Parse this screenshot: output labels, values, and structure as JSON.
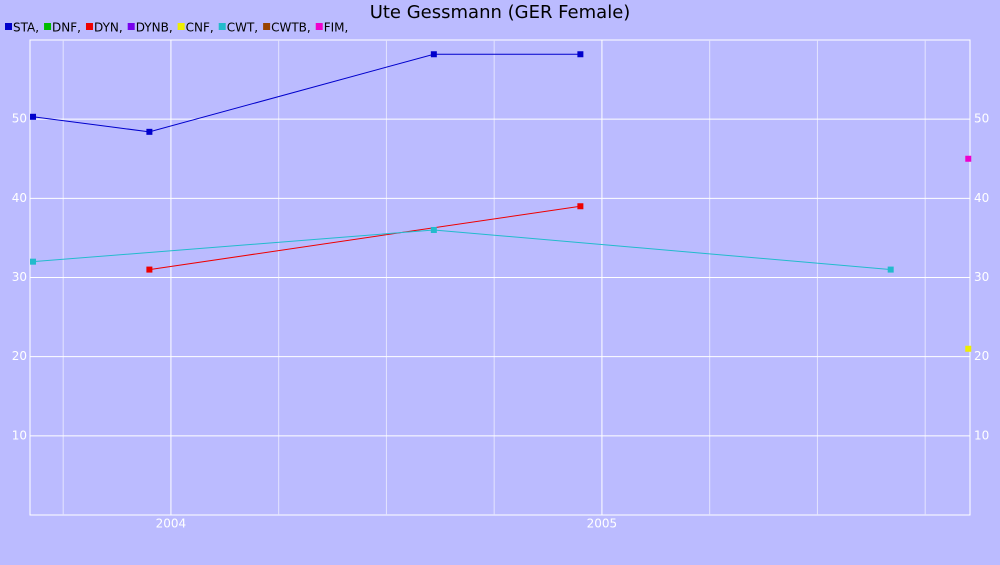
{
  "chart_data": {
    "type": "line",
    "title": "Ute Gessmann (GER Female)",
    "xlim": [
      2003.673,
      2005.854
    ],
    "xticks": [
      2004,
      2005
    ],
    "xminor_ticks": [
      2003.75,
      2004.25,
      2004.5,
      2004.75,
      2005.25,
      2005.5,
      2005.75
    ],
    "ylim": [
      0,
      60
    ],
    "yticks": [
      10,
      20,
      30,
      40,
      50
    ],
    "grid": true,
    "series": [
      {
        "name": "STA,",
        "color": "#0000cc",
        "x": [
          2003.68,
          2003.95,
          2004.61,
          2004.95
        ],
        "values": [
          50.3,
          48.4,
          58.2,
          58.2
        ]
      },
      {
        "name": "DNF,",
        "color": "#00bb00",
        "x": [],
        "values": []
      },
      {
        "name": "DYN,",
        "color": "#ee0000",
        "x": [
          2003.95,
          2004.95
        ],
        "values": [
          31,
          39
        ]
      },
      {
        "name": "DYNB,",
        "color": "#7700ee",
        "x": [],
        "values": []
      },
      {
        "name": "CNF,",
        "color": "#eeee00",
        "x": [
          2005.85
        ],
        "values": [
          21
        ]
      },
      {
        "name": "CWT,",
        "color": "#22bbcc",
        "x": [
          2003.68,
          2004.61,
          2005.67
        ],
        "values": [
          32,
          36,
          31
        ]
      },
      {
        "name": "CWTB,",
        "color": "#994400",
        "x": [],
        "values": []
      },
      {
        "name": "FIM,",
        "color": "#ee00cc",
        "x": [
          2005.85
        ],
        "values": [
          45
        ]
      }
    ]
  }
}
